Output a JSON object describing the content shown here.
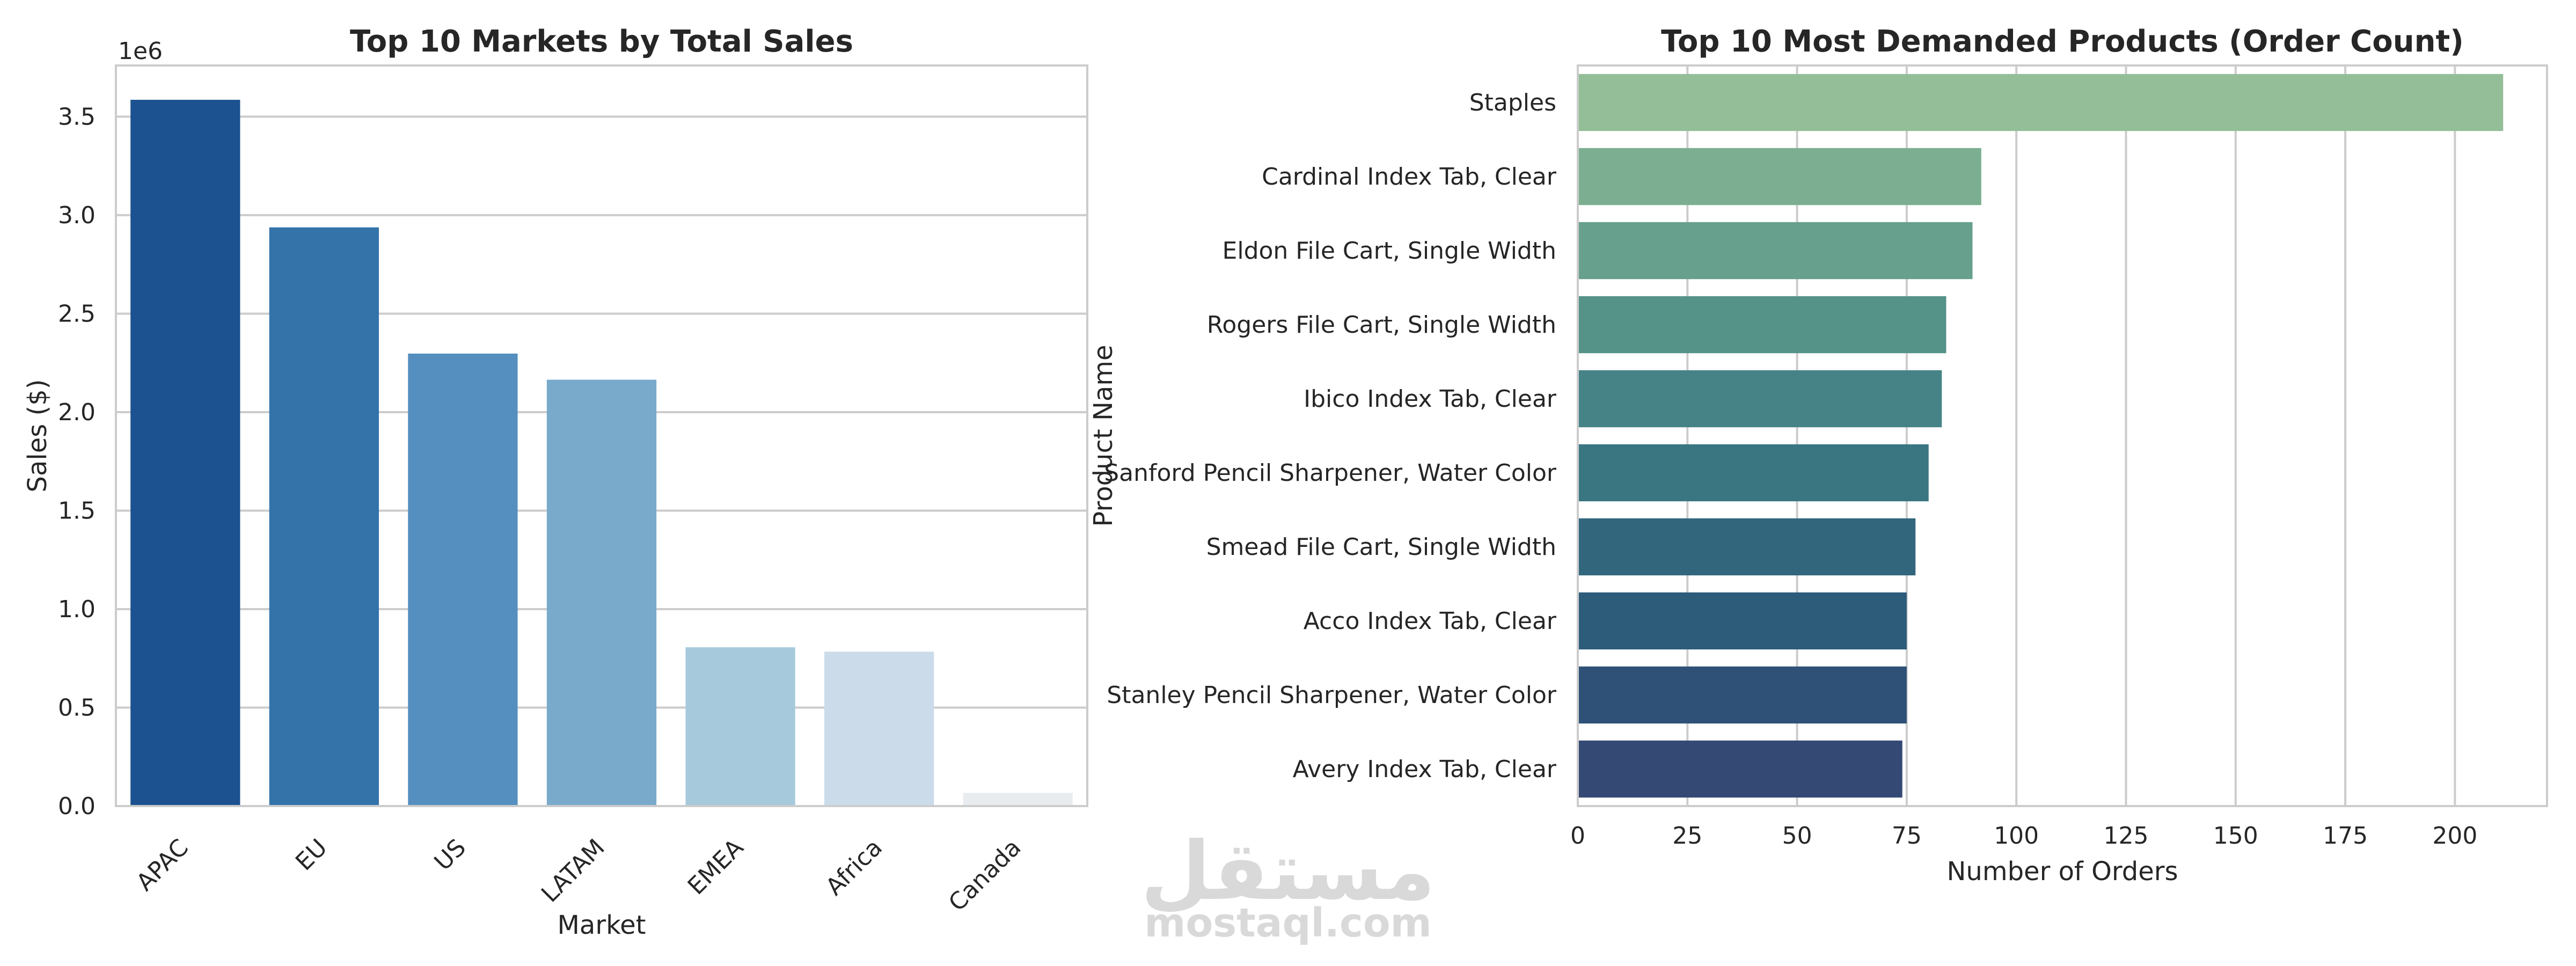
{
  "chart_data": [
    {
      "type": "bar",
      "title": "Top 10 Markets by Total Sales",
      "xlabel": "Market",
      "ylabel": "Sales ($)",
      "offset_label": "1e6",
      "categories": [
        "APAC",
        "EU",
        "US",
        "LATAM",
        "EMEA",
        "Africa",
        "Canada"
      ],
      "values": [
        3585744,
        2938089,
        2297201,
        2164605,
        806161,
        783773,
        66929
      ],
      "ylim": [
        0,
        3760000
      ],
      "yticks": [
        0,
        500000,
        1000000,
        1500000,
        2000000,
        2500000,
        3000000,
        3500000
      ],
      "ytick_labels": [
        "0.0",
        "0.5",
        "1.0",
        "1.5",
        "2.0",
        "2.5",
        "3.0",
        "3.5"
      ],
      "colors": [
        "#1c5290",
        "#3373aa",
        "#548fbf",
        "#79aacb",
        "#a7c9dc",
        "#cbdbea",
        "#e9ecef"
      ],
      "grid": "y"
    },
    {
      "type": "bar",
      "orientation": "horizontal",
      "title": "Top 10 Most Demanded Products (Order Count)",
      "xlabel": "Number of Orders",
      "ylabel": "Product Name",
      "categories": [
        "Staples",
        "Cardinal Index Tab, Clear",
        "Eldon File Cart, Single Width",
        "Rogers File Cart, Single Width",
        "Ibico Index Tab, Clear",
        "Sanford Pencil Sharpener, Water Color",
        "Smead File Cart, Single Width",
        "Acco Index Tab, Clear",
        "Stanley Pencil Sharpener, Water Color",
        "Avery Index Tab, Clear"
      ],
      "values": [
        211,
        92,
        90,
        84,
        83,
        80,
        77,
        75,
        75,
        74
      ],
      "xlim": [
        0,
        221
      ],
      "xticks": [
        0,
        25,
        50,
        75,
        100,
        125,
        150,
        175,
        200
      ],
      "colors": [
        "#94be98",
        "#7caf92",
        "#67a08c",
        "#559288",
        "#468386",
        "#3a7682",
        "#32667d",
        "#2d5b7a",
        "#2f5177",
        "#344a75"
      ],
      "grid": "x"
    }
  ],
  "watermark": {
    "arabic": "مستقل",
    "latin": "mostaql.com"
  }
}
